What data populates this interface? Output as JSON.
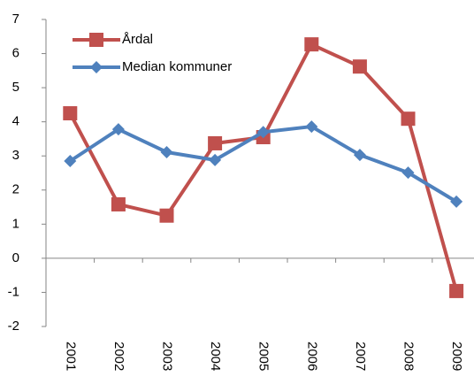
{
  "chart_data": {
    "type": "line",
    "categories": [
      "2001",
      "2002",
      "2003",
      "2004",
      "2005",
      "2006",
      "2007",
      "2008",
      "2009"
    ],
    "series": [
      {
        "name": "Årdal",
        "color": "#c0504d",
        "marker": "square",
        "values": [
          4.25,
          1.58,
          1.25,
          3.37,
          3.55,
          6.27,
          5.62,
          4.09,
          -0.96
        ]
      },
      {
        "name": "Median kommuner",
        "color": "#4f81bd",
        "marker": "diamond",
        "values": [
          2.85,
          3.78,
          3.11,
          2.88,
          3.7,
          3.86,
          3.03,
          2.51,
          1.66
        ]
      }
    ],
    "ylim": [
      -2,
      7
    ],
    "yticks": [
      -2,
      -1,
      0,
      1,
      2,
      3,
      4,
      5,
      6,
      7
    ],
    "grid": false,
    "legend": "upper-left"
  }
}
